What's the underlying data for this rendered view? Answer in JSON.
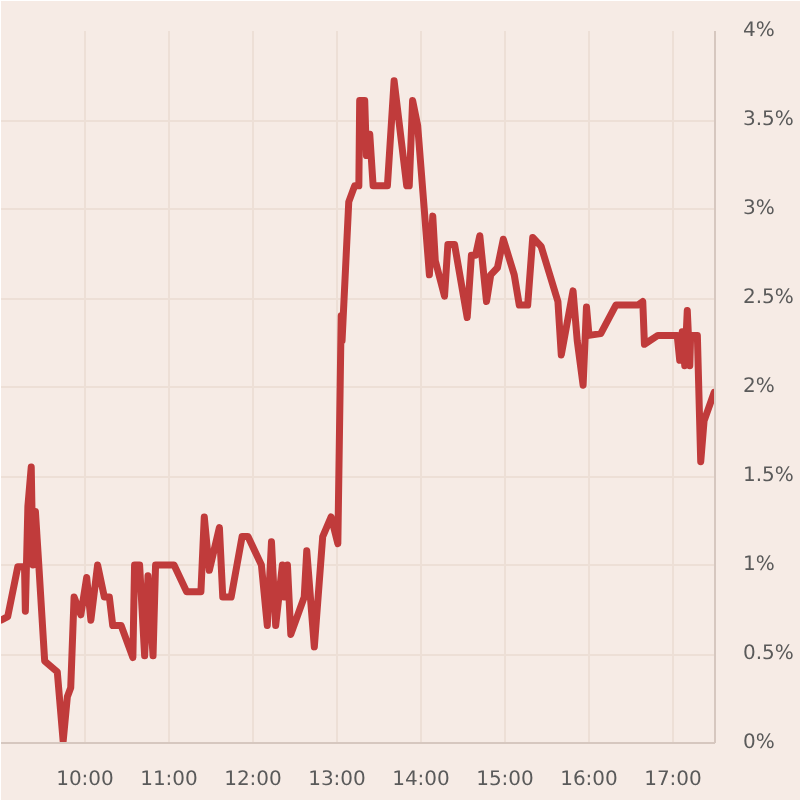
{
  "chart_data": {
    "type": "line",
    "x": [
      9.0,
      9.08,
      9.2,
      9.28,
      9.29,
      9.32,
      9.36,
      9.38,
      9.41,
      9.45,
      9.52,
      9.67,
      9.74,
      9.79,
      9.83,
      9.87,
      9.95,
      10.02,
      10.07,
      10.15,
      10.23,
      10.29,
      10.33,
      10.43,
      10.57,
      10.59,
      10.65,
      10.71,
      10.75,
      10.81,
      10.84,
      11.06,
      11.21,
      11.38,
      11.42,
      11.48,
      11.6,
      11.64,
      11.74,
      11.87,
      11.94,
      12.1,
      12.17,
      12.22,
      12.27,
      12.35,
      12.37,
      12.41,
      12.45,
      12.61,
      12.64,
      12.73,
      12.83,
      12.93,
      13.01,
      13.05,
      13.06,
      13.14,
      13.21,
      13.26,
      13.27,
      13.33,
      13.35,
      13.39,
      13.43,
      13.6,
      13.68,
      13.83,
      13.86,
      13.9,
      13.96,
      14.1,
      14.14,
      14.17,
      14.28,
      14.32,
      14.4,
      14.55,
      14.6,
      14.65,
      14.7,
      14.78,
      14.83,
      14.91,
      14.98,
      15.11,
      15.17,
      15.27,
      15.33,
      15.43,
      15.63,
      15.67,
      15.81,
      15.86,
      15.93,
      15.97,
      16.0,
      16.14,
      16.32,
      16.58,
      16.64,
      16.66,
      16.82,
      17.05,
      17.08,
      17.11,
      17.14,
      17.17,
      17.2,
      17.21,
      17.29,
      17.33,
      17.37,
      17.49
    ],
    "series": [
      {
        "color": "#c03b3b",
        "values": [
          0.69,
          0.71,
          0.99,
          0.99,
          0.74,
          1.33,
          1.55,
          1.0,
          1.3,
          1.0,
          0.46,
          0.4,
          0.01,
          0.26,
          0.31,
          0.82,
          0.72,
          0.93,
          0.69,
          1.0,
          0.82,
          0.82,
          0.66,
          0.66,
          0.48,
          1.0,
          1.0,
          0.49,
          0.94,
          0.49,
          1.0,
          1.0,
          0.85,
          0.85,
          1.27,
          0.97,
          1.21,
          0.82,
          0.82,
          1.16,
          1.16,
          1.0,
          0.66,
          1.13,
          0.66,
          1.0,
          0.82,
          1.0,
          0.61,
          0.82,
          1.08,
          0.54,
          1.16,
          1.27,
          1.12,
          2.4,
          2.26,
          3.04,
          3.13,
          3.13,
          3.61,
          3.61,
          3.3,
          3.42,
          3.13,
          3.13,
          3.72,
          3.13,
          3.13,
          3.61,
          3.47,
          2.63,
          2.96,
          2.71,
          2.51,
          2.8,
          2.8,
          2.39,
          2.74,
          2.74,
          2.85,
          2.48,
          2.63,
          2.67,
          2.83,
          2.63,
          2.46,
          2.46,
          2.84,
          2.79,
          2.48,
          2.18,
          2.54,
          2.26,
          2.01,
          2.45,
          2.29,
          2.3,
          2.46,
          2.46,
          2.48,
          2.24,
          2.29,
          2.29,
          2.15,
          2.31,
          2.12,
          2.43,
          2.12,
          2.29,
          2.29,
          1.58,
          1.81,
          1.97
        ]
      }
    ],
    "xlim": [
      9,
      17.5
    ],
    "ylim": [
      0,
      4
    ],
    "xticks": [
      {
        "value": 10,
        "label": "10:00"
      },
      {
        "value": 11,
        "label": "11:00"
      },
      {
        "value": 12,
        "label": "12:00"
      },
      {
        "value": 13,
        "label": "13:00"
      },
      {
        "value": 14,
        "label": "14:00"
      },
      {
        "value": 15,
        "label": "15:00"
      },
      {
        "value": 16,
        "label": "16:00"
      },
      {
        "value": 17,
        "label": "17:00"
      }
    ],
    "yticks": [
      {
        "value": 0,
        "label": "0%"
      },
      {
        "value": 0.5,
        "label": "0.5%"
      },
      {
        "value": 1,
        "label": "1%"
      },
      {
        "value": 1.5,
        "label": "1.5%"
      },
      {
        "value": 2,
        "label": "2%"
      },
      {
        "value": 2.5,
        "label": "2.5%"
      },
      {
        "value": 3,
        "label": "3%"
      },
      {
        "value": 3.5,
        "label": "3.5%"
      },
      {
        "value": 4,
        "label": "4%"
      }
    ],
    "grid": true,
    "marker": "none",
    "line_style": "solid"
  }
}
